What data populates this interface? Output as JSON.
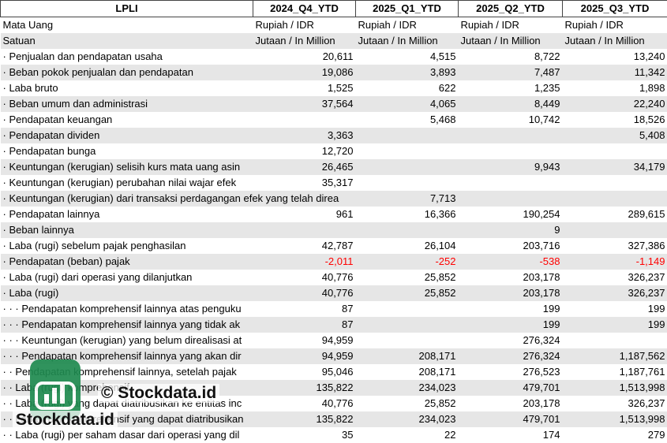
{
  "table": {
    "headers": [
      "LPLI",
      "2024_Q4_YTD",
      "2025_Q1_YTD",
      "2025_Q2_YTD",
      "2025_Q3_YTD"
    ],
    "rows": [
      [
        "Mata Uang",
        "Rupiah / IDR",
        "Rupiah / IDR",
        "Rupiah / IDR",
        "Rupiah / IDR"
      ],
      [
        "Satuan",
        "Jutaan / In Million",
        "Jutaan / In Million",
        "Jutaan / In Million",
        "Jutaan / In Million"
      ],
      [
        "· Penjualan dan pendapatan usaha",
        "20,611",
        "4,515",
        "8,722",
        "13,240"
      ],
      [
        "· Beban pokok penjualan dan pendapatan",
        "19,086",
        "3,893",
        "7,487",
        "11,342"
      ],
      [
        "· Laba bruto",
        "1,525",
        "622",
        "1,235",
        "1,898"
      ],
      [
        "· Beban umum dan administrasi",
        "37,564",
        "4,065",
        "8,449",
        "22,240"
      ],
      [
        "· Pendapatan keuangan",
        null,
        "5,468",
        "10,742",
        "18,526"
      ],
      [
        "· Pendapatan dividen",
        "3,363",
        null,
        null,
        "5,408"
      ],
      [
        "· Pendapatan bunga",
        "12,720",
        null,
        null,
        null
      ],
      [
        "· Keuntungan (kerugian) selisih kurs mata uang asin",
        "26,465",
        null,
        "9,943",
        "34,179"
      ],
      [
        "· Keuntungan (kerugian) perubahan nilai wajar efek",
        "35,317",
        null,
        null,
        null
      ],
      [
        "· Keuntungan (kerugian) dari transaksi perdagangan efek yang telah direa",
        null,
        "7,713",
        null,
        null
      ],
      [
        "· Pendapatan lainnya",
        "961",
        "16,366",
        "190,254",
        "289,615"
      ],
      [
        "· Beban lainnya",
        null,
        null,
        "9",
        null
      ],
      [
        "· Laba (rugi) sebelum pajak penghasilan",
        "42,787",
        "26,104",
        "203,716",
        "327,386"
      ],
      [
        "· Pendapatan (beban) pajak",
        "-2,011",
        "-252",
        "-538",
        "-1,149"
      ],
      [
        "· Laba (rugi) dari operasi yang dilanjutkan",
        "40,776",
        "25,852",
        "203,178",
        "326,237"
      ],
      [
        "· Laba (rugi)",
        "40,776",
        "25,852",
        "203,178",
        "326,237"
      ],
      [
        "· · · Pendapatan komprehensif lainnya atas penguku",
        "87",
        null,
        "199",
        "199"
      ],
      [
        "· · · Pendapatan komprehensif lainnya yang tidak ak",
        "87",
        null,
        "199",
        "199"
      ],
      [
        "· · · Keuntungan (kerugian) yang belum direalisasi at",
        "94,959",
        null,
        "276,324",
        null
      ],
      [
        "· · · Pendapatan komprehensif lainnya yang akan dir",
        "94,959",
        "208,171",
        "276,324",
        "1,187,562"
      ],
      [
        "· · Pendapatan komprehensif lainnya, setelah pajak",
        "95,046",
        "208,171",
        "276,523",
        "1,187,761"
      ],
      [
        "· · Laba (rugi) komprehensif",
        "135,822",
        "234,023",
        "479,701",
        "1,513,998"
      ],
      [
        "· · Laba (rugi) yang dapat diatribusikan ke entitas inc",
        "40,776",
        "25,852",
        "203,178",
        "326,237"
      ],
      [
        "· · Laba (rugi) komprehensif yang dapat diatribusikan",
        "135,822",
        "234,023",
        "479,701",
        "1,513,998"
      ],
      [
        "· · Laba (rugi) per saham dasar dari operasi yang dil",
        "35",
        "22",
        "174",
        "279"
      ]
    ]
  },
  "watermark": {
    "text": "© Stockdata.id",
    "logo_text": "Stockdata.id"
  }
}
